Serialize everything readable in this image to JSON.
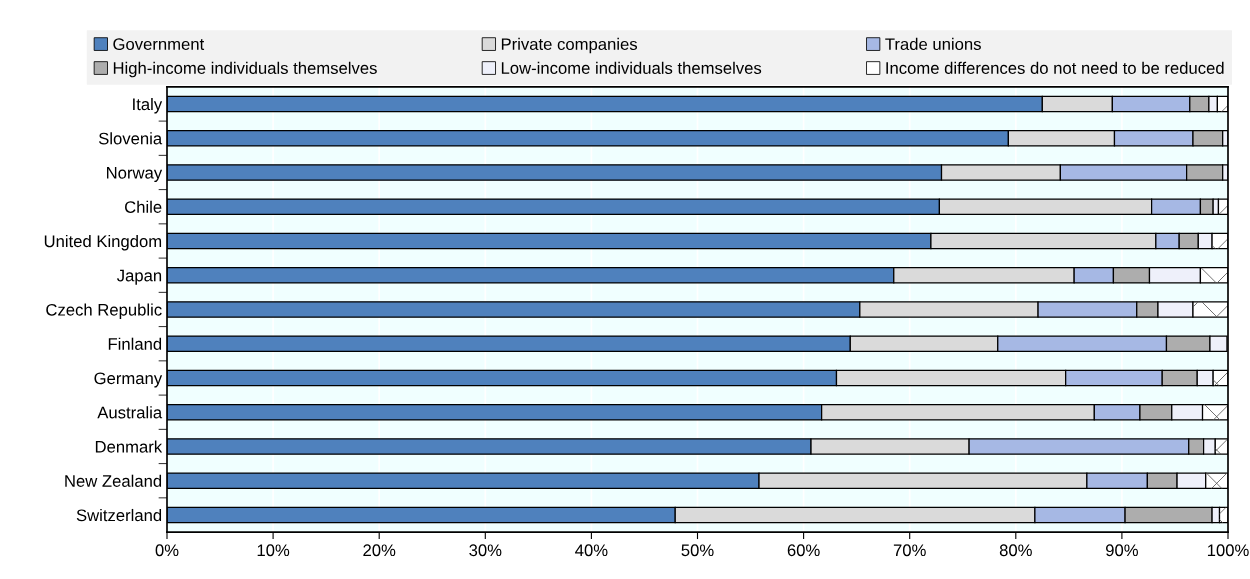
{
  "chart_data": {
    "type": "bar",
    "orientation": "horizontal",
    "stacked": true,
    "legend": "top",
    "grid": "x",
    "categories": [
      "Italy",
      "Slovenia",
      "Norway",
      "Chile",
      "United Kingdom",
      "Japan",
      "Czech Republic",
      "Finland",
      "Germany",
      "Australia",
      "Denmark",
      "New Zealand",
      "Switzerland"
    ],
    "series": [
      {
        "name": "Government",
        "color": "#4f81bd",
        "values": [
          82.5,
          79.3,
          73.0,
          72.8,
          72.0,
          68.5,
          65.3,
          64.4,
          63.1,
          61.7,
          60.7,
          55.8,
          47.9
        ]
      },
      {
        "name": "Private companies",
        "color": "#dadada",
        "values": [
          6.6,
          10.0,
          11.2,
          20.0,
          21.2,
          17.0,
          16.8,
          13.9,
          21.6,
          25.7,
          14.9,
          30.9,
          33.9
        ]
      },
      {
        "name": "Trade unions",
        "color": "#a6b8e4",
        "values": [
          7.3,
          7.4,
          11.9,
          4.6,
          2.2,
          3.7,
          9.3,
          15.9,
          9.1,
          4.3,
          20.7,
          5.7,
          8.5
        ]
      },
      {
        "name": "High-income individuals themselves",
        "color": "#adadad",
        "values": [
          1.8,
          2.8,
          3.4,
          1.2,
          1.8,
          3.4,
          2.0,
          4.1,
          3.3,
          3.0,
          1.4,
          2.8,
          8.2
        ]
      },
      {
        "name": "Low-income individuals themselves",
        "color": "#eef0fa",
        "values": [
          0.8,
          0.5,
          0.5,
          0.5,
          1.3,
          4.8,
          3.3,
          1.6,
          1.5,
          2.9,
          1.1,
          2.7,
          0.7
        ]
      },
      {
        "name": "Income differences do not need to be reduced",
        "color": "#ffffff",
        "values": [
          1.0,
          0.0,
          0.0,
          0.9,
          1.5,
          2.6,
          3.3,
          null,
          1.4,
          2.4,
          1.2,
          2.1,
          0.8
        ]
      }
    ],
    "xlim": [
      0,
      100
    ],
    "xticks": [
      {
        "value": 0,
        "label": "0%"
      },
      {
        "value": 10,
        "label": "10%"
      },
      {
        "value": 20,
        "label": "20%"
      },
      {
        "value": 30,
        "label": "30%"
      },
      {
        "value": 40,
        "label": "40%"
      },
      {
        "value": 50,
        "label": "50%"
      },
      {
        "value": 60,
        "label": "60%"
      },
      {
        "value": 70,
        "label": "70%"
      },
      {
        "value": 80,
        "label": "80%"
      },
      {
        "value": 90,
        "label": "90%"
      },
      {
        "value": 100,
        "label": "100%"
      }
    ]
  }
}
